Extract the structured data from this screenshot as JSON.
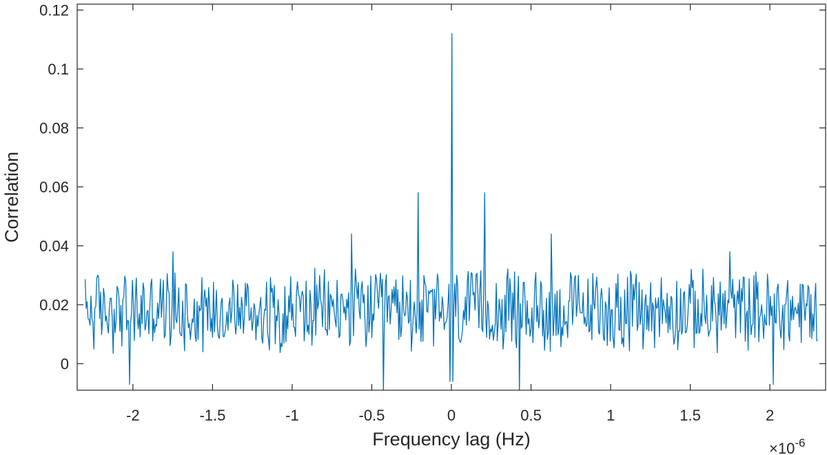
{
  "chart_data": {
    "type": "line",
    "xlabel": "Frequency lag (Hz)",
    "ylabel": "Correlation",
    "x_multiplier": "×10",
    "x_multiplier_exp": "-6",
    "xlim": [
      -2.35,
      2.35
    ],
    "ylim": [
      -0.009,
      0.122
    ],
    "xticks": [
      -2,
      -1.5,
      -1,
      -0.5,
      0,
      0.5,
      1,
      1.5,
      2
    ],
    "xtick_labels": [
      "-2",
      "-1.5",
      "-1",
      "-0.5",
      "0",
      "0.5",
      "1",
      "1.5",
      "2"
    ],
    "yticks": [
      0,
      0.02,
      0.04,
      0.06,
      0.08,
      0.1,
      0.12
    ],
    "ytick_labels": [
      "0",
      "0.02",
      "0.04",
      "0.06",
      "0.08",
      "0.1",
      "0.12"
    ],
    "grid": false,
    "line_color": "#0072BD",
    "series": [
      {
        "x_range": [
          -2.3,
          2.3
        ],
        "baseline": 0.018,
        "noise_amplitude": 0.012,
        "peaks": [
          {
            "x": 0,
            "y": 0.112
          },
          {
            "x": -0.21,
            "y": 0.058
          },
          {
            "x": 0.21,
            "y": 0.058
          },
          {
            "x": -0.63,
            "y": 0.044
          },
          {
            "x": 0.63,
            "y": 0.044
          },
          {
            "x": -1.75,
            "y": 0.038
          },
          {
            "x": 1.75,
            "y": 0.038
          }
        ],
        "dips": [
          {
            "x": -0.43,
            "y": -0.01
          },
          {
            "x": 0.43,
            "y": -0.01
          },
          {
            "x": -2.02,
            "y": -0.007
          },
          {
            "x": 2.02,
            "y": -0.007
          },
          {
            "x": -0.01,
            "y": -0.006
          },
          {
            "x": 0.01,
            "y": -0.006
          }
        ]
      }
    ]
  }
}
